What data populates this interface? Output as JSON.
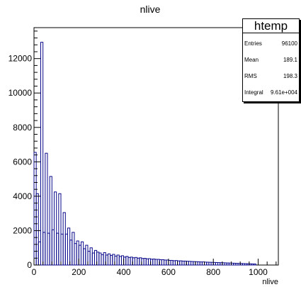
{
  "chart_data": {
    "type": "histogram",
    "title": "nlive",
    "xlabel": "nlive",
    "ylabel": "",
    "xlim": [
      0,
      1090
    ],
    "ylim": [
      0,
      13800
    ],
    "x_ticks": [
      0,
      200,
      400,
      600,
      800,
      1000
    ],
    "y_ticks": [
      0,
      2000,
      4000,
      6000,
      8000,
      10000,
      12000
    ],
    "bin_width": 10,
    "x_start": 0,
    "counts": [
      6550,
      4150,
      1350,
      12950,
      1900,
      6500,
      1850,
      5150,
      2050,
      4250,
      1850,
      4150,
      1800,
      3050,
      1800,
      2150,
      1450,
      1900,
      1250,
      1400,
      1150,
      1350,
      950,
      1150,
      800,
      1000,
      700,
      850,
      750,
      700,
      600,
      720,
      580,
      650,
      560,
      620,
      520,
      580,
      500,
      540,
      460,
      500,
      440,
      460,
      420,
      440,
      400,
      420,
      380,
      390,
      360,
      370,
      340,
      350,
      330,
      330,
      310,
      310,
      290,
      290,
      270,
      270,
      250,
      260,
      240,
      245,
      230,
      230,
      220,
      215,
      205,
      200,
      195,
      190,
      180,
      180,
      170,
      165,
      160,
      155,
      150,
      145,
      140,
      135,
      130,
      125,
      120,
      115,
      110,
      105,
      100,
      95,
      90,
      85,
      80,
      75,
      70,
      65,
      60,
      0
    ],
    "line_color": "#0a0a8c",
    "stats": {
      "title": "htemp",
      "rows": [
        {
          "label": "Entries",
          "value": "96100"
        },
        {
          "label": "Mean",
          "value": "189.1"
        },
        {
          "label": "RMS",
          "value": "198.3"
        },
        {
          "label": "Integral",
          "value": "9.61e+004"
        }
      ]
    }
  }
}
